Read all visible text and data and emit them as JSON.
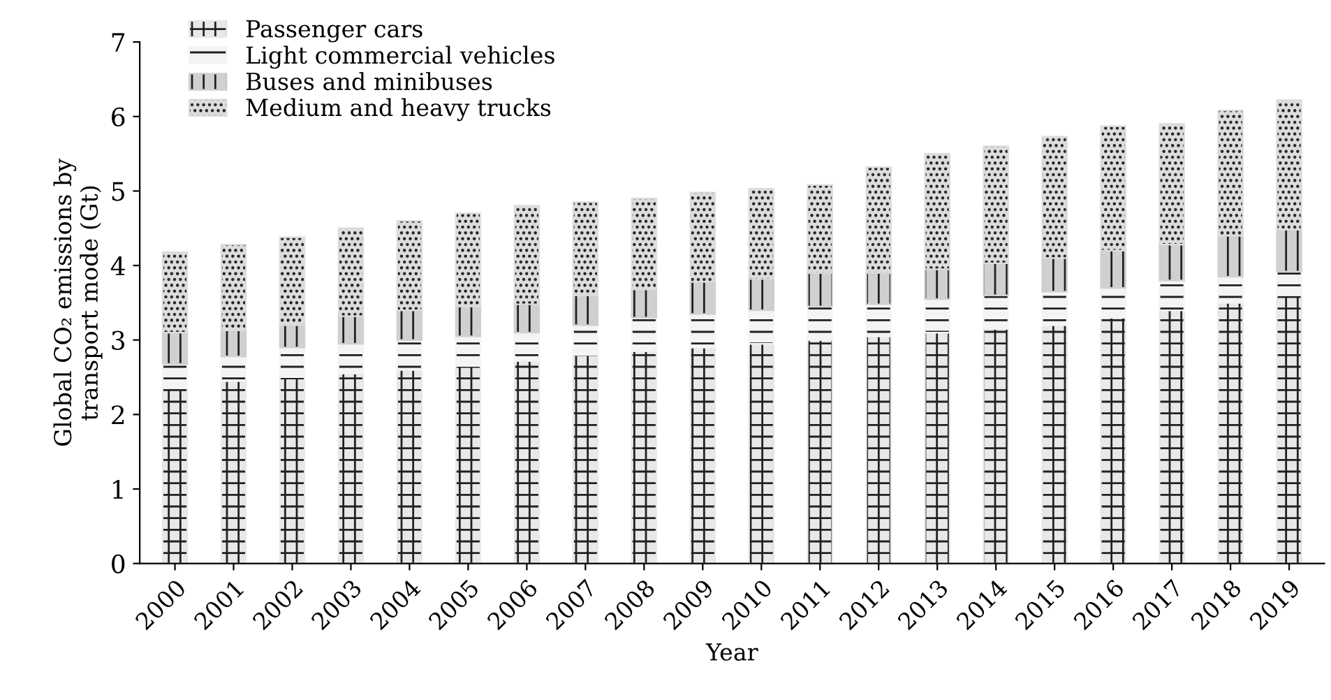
{
  "chart_data": {
    "type": "bar",
    "stacked": true,
    "xlabel": "Year",
    "ylabel": "Global CO₂ emissions by\ntransport mode (Gt)",
    "categories": [
      "2000",
      "2001",
      "2002",
      "2003",
      "2004",
      "2005",
      "2006",
      "2007",
      "2008",
      "2009",
      "2010",
      "2011",
      "2012",
      "2013",
      "2014",
      "2015",
      "2016",
      "2017",
      "2018",
      "2019"
    ],
    "series": [
      {
        "name": "Passenger cars",
        "color": "#e8e8e8",
        "values": [
          2.35,
          2.45,
          2.5,
          2.55,
          2.6,
          2.65,
          2.72,
          2.8,
          2.85,
          2.9,
          2.95,
          3.0,
          3.05,
          3.1,
          3.15,
          3.2,
          3.3,
          3.4,
          3.5,
          3.6
        ]
      },
      {
        "name": "Light commercial vehicles",
        "color": "#f4f4f4",
        "values": [
          0.33,
          0.33,
          0.4,
          0.4,
          0.4,
          0.4,
          0.38,
          0.4,
          0.45,
          0.45,
          0.45,
          0.45,
          0.43,
          0.45,
          0.45,
          0.45,
          0.4,
          0.4,
          0.35,
          0.32
        ]
      },
      {
        "name": "Buses and minibuses",
        "color": "#d0d0d0",
        "values": [
          0.42,
          0.35,
          0.3,
          0.37,
          0.4,
          0.4,
          0.38,
          0.4,
          0.38,
          0.43,
          0.42,
          0.45,
          0.42,
          0.4,
          0.43,
          0.45,
          0.5,
          0.48,
          0.55,
          0.56
        ]
      },
      {
        "name": "Medium and heavy trucks",
        "color": "#dcdcdc",
        "values": [
          1.08,
          1.15,
          1.18,
          1.18,
          1.2,
          1.25,
          1.32,
          1.25,
          1.22,
          1.2,
          1.21,
          1.18,
          1.42,
          1.55,
          1.57,
          1.63,
          1.67,
          1.62,
          1.68,
          1.74
        ]
      }
    ],
    "ylim": [
      0,
      7
    ],
    "yticks": [
      0,
      1,
      2,
      3,
      4,
      5,
      6,
      7
    ],
    "grid": false,
    "legend": "top left"
  }
}
